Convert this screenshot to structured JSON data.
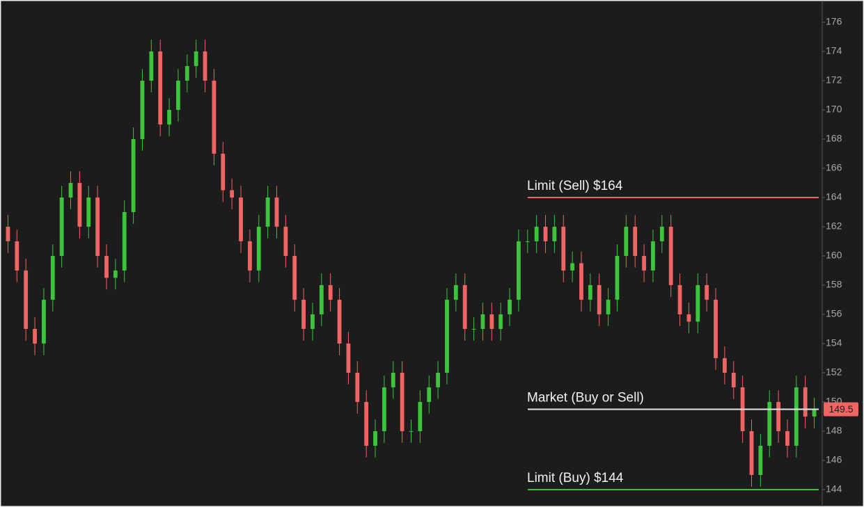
{
  "chart_data": {
    "type": "candlestick",
    "ylim": [
      142.95,
      177.38
    ],
    "yticks": [
      144,
      146,
      148,
      150,
      152,
      154,
      156,
      158,
      160,
      162,
      164,
      166,
      168,
      170,
      172,
      174,
      176
    ],
    "up_color": "#3cc43c",
    "down_color": "#f06464",
    "open": [
      162,
      161,
      159,
      155,
      154,
      157,
      160,
      164,
      165,
      162,
      164,
      160,
      158.5,
      159,
      163,
      168,
      172,
      174,
      169,
      170,
      172,
      173,
      174,
      172,
      167,
      164.5,
      164,
      161,
      159,
      162,
      164,
      162,
      160,
      157,
      155,
      156,
      158,
      157,
      154,
      152,
      150,
      147,
      148,
      151,
      152,
      148,
      148,
      150,
      151,
      152,
      157,
      158,
      155,
      155,
      156,
      155,
      156,
      157,
      161,
      161,
      162,
      161,
      162,
      159,
      159.5,
      157,
      158,
      156,
      157,
      160,
      162,
      160,
      159,
      161,
      162,
      158,
      156,
      155.5,
      158,
      157,
      153,
      152,
      151,
      148,
      145,
      147,
      150,
      148,
      147,
      151,
      149
    ],
    "high": [
      162.8,
      161.8,
      159.8,
      155.8,
      157.8,
      160.8,
      164.8,
      165.8,
      165.8,
      164.8,
      164.8,
      160.8,
      159.8,
      163.8,
      168.8,
      172.8,
      174.8,
      174.8,
      170.8,
      172.8,
      173.8,
      174.8,
      174.8,
      172.8,
      167.8,
      165.3,
      164.8,
      161.8,
      162.8,
      164.8,
      164.8,
      162.8,
      160.8,
      157.8,
      156.8,
      158.8,
      158.8,
      157.8,
      154.8,
      152.8,
      150.8,
      148.8,
      151.8,
      152.8,
      152.8,
      148.8,
      150.8,
      151.8,
      152.8,
      157.8,
      158.8,
      158.8,
      155.8,
      156.8,
      156.8,
      156.8,
      157.8,
      161.8,
      161.8,
      162.8,
      162.8,
      162.8,
      162.8,
      160.3,
      160.3,
      158.8,
      158.8,
      157.8,
      160.8,
      162.8,
      162.8,
      160.8,
      161.8,
      162.8,
      162.8,
      158.8,
      156.8,
      158.8,
      158.8,
      157.8,
      153.8,
      152.8,
      151.8,
      148.8,
      147.8,
      150.8,
      150.8,
      148.8,
      151.8,
      151.8,
      150.3
    ],
    "low": [
      160.2,
      158.2,
      154.2,
      153.2,
      153.2,
      156.2,
      159.2,
      163.2,
      161.2,
      161.2,
      159.2,
      157.7,
      157.7,
      158.2,
      162.2,
      167.2,
      171.2,
      168.2,
      168.2,
      169.2,
      171.2,
      172.2,
      171.2,
      166.2,
      163.7,
      163.2,
      160.2,
      158.2,
      158.2,
      161.2,
      161.2,
      159.2,
      156.2,
      154.2,
      154.2,
      155.2,
      156.2,
      153.2,
      151.2,
      149.2,
      146.2,
      146.2,
      147.2,
      150.2,
      147.2,
      147.2,
      147.2,
      149.2,
      150.2,
      151.2,
      156.2,
      154.2,
      154.2,
      154.2,
      154.2,
      154.2,
      155.2,
      156.2,
      160.2,
      160.2,
      160.2,
      160.2,
      158.2,
      158.2,
      156.2,
      156.2,
      155.2,
      155.2,
      156.2,
      159.2,
      159.2,
      158.2,
      158.2,
      160.2,
      157.2,
      155.2,
      154.7,
      154.7,
      156.2,
      152.2,
      151.2,
      150.2,
      147.2,
      144.2,
      144.2,
      146.2,
      147.2,
      146.2,
      146.2,
      148.2,
      148.2
    ],
    "close": [
      161,
      159,
      155,
      154,
      157,
      160,
      164,
      165,
      162,
      164,
      160,
      158.5,
      159,
      163,
      168,
      172,
      174,
      169,
      170,
      172,
      173,
      174,
      172,
      167,
      164.5,
      164,
      161,
      159,
      162,
      164,
      162,
      160,
      157,
      155,
      156,
      158,
      157,
      154,
      152,
      150,
      147,
      148,
      151,
      152,
      148,
      148,
      150,
      151,
      152,
      157,
      158,
      155,
      155,
      156,
      155,
      156,
      157,
      161,
      161,
      162,
      161,
      162,
      159,
      159.5,
      157,
      158,
      156,
      157,
      160,
      162,
      160,
      159,
      161,
      162,
      158,
      156,
      155.5,
      158,
      157,
      153,
      152,
      151,
      148,
      145,
      147,
      150,
      148,
      147,
      151,
      149,
      149.5
    ],
    "levels": [
      {
        "label": "Limit (Sell) $164",
        "value": 164,
        "color": "#f06464"
      },
      {
        "label": "Market (Buy or Sell)",
        "value": 149.5,
        "color": "#e8e8e8"
      },
      {
        "label": "Limit (Buy) $144",
        "value": 144,
        "color": "#3cc43c"
      }
    ],
    "last_price": 149.5
  }
}
